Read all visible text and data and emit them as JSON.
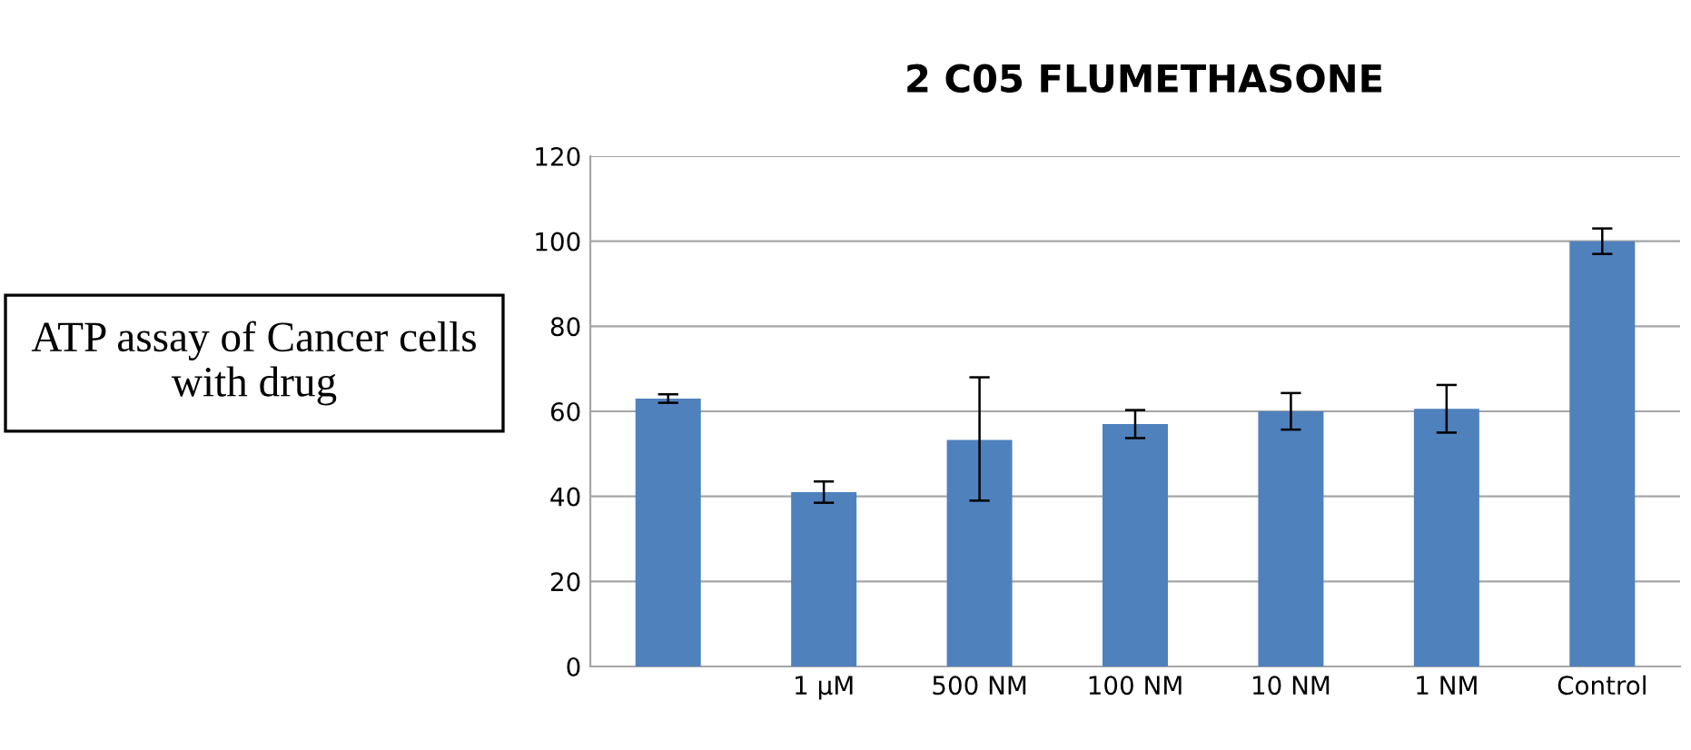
{
  "chart_data": {
    "type": "bar",
    "title": "2 C05 FLUMETHASONE",
    "categories": [
      null,
      "1 µM",
      "500 NM",
      "100 NM",
      "10 NM",
      "1 NM",
      "Control"
    ],
    "values": [
      63,
      41,
      53.3,
      57,
      60,
      60.6,
      100
    ],
    "errors": [
      1,
      2.5,
      [
        39,
        68
      ],
      3.3,
      4.3,
      5.6,
      3
    ],
    "color": "#4f81bd",
    "ylim": [
      0,
      120
    ],
    "yticks": [
      0,
      20,
      40,
      60,
      80,
      100,
      120
    ],
    "grid": "y",
    "annotations": [
      "ATP assay of Cancer cells with drug"
    ]
  }
}
